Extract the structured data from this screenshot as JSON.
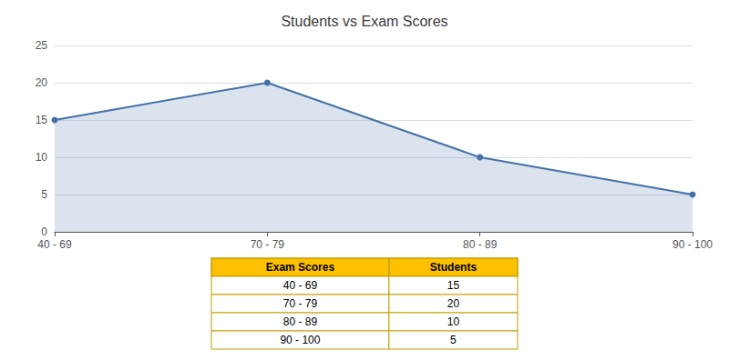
{
  "chart_data": {
    "type": "area",
    "title": "Students vs Exam Scores",
    "categories": [
      "40 - 69",
      "70 - 79",
      "80 - 89",
      "90 - 100"
    ],
    "values": [
      15,
      20,
      10,
      5
    ],
    "color": "#4472a8",
    "marker": "circle",
    "ylim": [
      0,
      25
    ],
    "yticks": [
      0,
      5,
      10,
      15,
      20,
      25
    ],
    "grid": true,
    "table": {
      "columns": [
        "Exam Scores",
        "Students"
      ],
      "rows": [
        [
          "40 - 69",
          15
        ],
        [
          "70 - 79",
          20
        ],
        [
          "80 - 89",
          10
        ],
        [
          "90 - 100",
          5
        ]
      ]
    }
  }
}
